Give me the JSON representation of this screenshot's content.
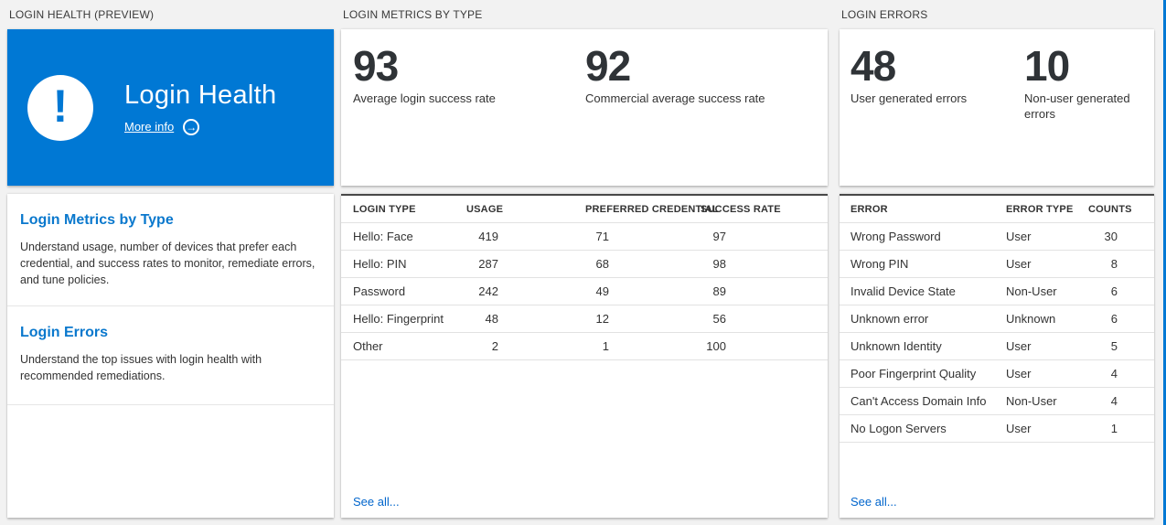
{
  "colors": {
    "accent_blue": "#0078d4",
    "link_blue": "#0065cc",
    "background": "#f2f2f2"
  },
  "icons": {
    "exclamation_glyph": "!",
    "arrow_glyph": "→"
  },
  "login_health": {
    "caption": "LOGIN HEALTH (PREVIEW)",
    "tile": {
      "title": "Login Health",
      "more_info_label": "More info"
    },
    "info_items": [
      {
        "title": "Login Metrics by Type",
        "description": "Understand usage, number of devices that prefer each credential, and success rates to monitor, remediate errors, and tune policies."
      },
      {
        "title": "Login Errors",
        "description": "Understand the top issues with login health with recommended remediations."
      }
    ]
  },
  "login_metrics": {
    "caption": "LOGIN METRICS BY TYPE",
    "stats": [
      {
        "value": "93",
        "label": "Average login success rate"
      },
      {
        "value": "92",
        "label": "Commercial average success rate"
      }
    ],
    "table": {
      "columns": [
        "LOGIN TYPE",
        "USAGE",
        "PREFERRED CREDENTIAL",
        "SUCCESS RATE"
      ],
      "rows": [
        [
          "Hello: Face",
          "419",
          "71",
          "97"
        ],
        [
          "Hello: PIN",
          "287",
          "68",
          "98"
        ],
        [
          "Password",
          "242",
          "49",
          "89"
        ],
        [
          "Hello: Fingerprint",
          "48",
          "12",
          "56"
        ],
        [
          "Other",
          "2",
          "1",
          "100"
        ]
      ]
    },
    "see_all_label": "See all..."
  },
  "login_errors": {
    "caption": "LOGIN ERRORS",
    "stats": [
      {
        "value": "48",
        "label": "User generated errors"
      },
      {
        "value": "10",
        "label": "Non-user generated errors"
      }
    ],
    "table": {
      "columns": [
        "ERROR",
        "ERROR TYPE",
        "COUNTS"
      ],
      "rows": [
        [
          "Wrong Password",
          "User",
          "30"
        ],
        [
          "Wrong PIN",
          "User",
          "8"
        ],
        [
          "Invalid Device State",
          "Non-User",
          "6"
        ],
        [
          "Unknown error",
          "Unknown",
          "6"
        ],
        [
          "Unknown Identity",
          "User",
          "5"
        ],
        [
          "Poor Fingerprint Quality",
          "User",
          "4"
        ],
        [
          "Can't Access Domain Info",
          "Non-User",
          "4"
        ],
        [
          "No Logon Servers",
          "User",
          "1"
        ]
      ]
    },
    "see_all_label": "See all..."
  }
}
